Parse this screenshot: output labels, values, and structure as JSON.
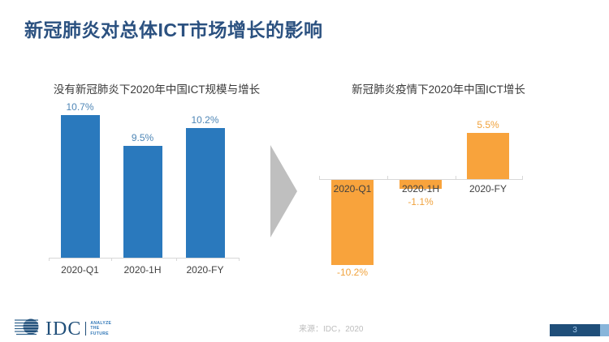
{
  "slide": {
    "title": "新冠肺炎对总体ICT市场增长的影响",
    "source": "来源：IDC，2020",
    "page_number": "3"
  },
  "logo": {
    "wordmark": "IDC",
    "tagline_lines": [
      "ANALYZE",
      "THE",
      "FUTURE"
    ]
  },
  "colors": {
    "title": "#2B5180",
    "blue_bar": "#2A79BD",
    "blue_value_label": "#4E86B6",
    "orange_bar": "#F8A33C",
    "orange_value_label": "#F0A23C",
    "category_label": "#3F3F3F",
    "axis": "#D8D8D8",
    "arrow": "#BFBFBF",
    "footer_dark_blue": "#1F4E79",
    "footer_light_blue": "#88B5DA"
  },
  "chart_data": [
    {
      "type": "bar",
      "title": "没有新冠肺炎下2020年中国ICT规模与增长",
      "categories": [
        "2020-Q1",
        "2020-1H",
        "2020-FY"
      ],
      "values": [
        10.7,
        9.5,
        10.2
      ],
      "labels": [
        "10.7%",
        "9.5%",
        "10.2%"
      ],
      "unit": "percent growth",
      "bar_color": "#2A79BD",
      "label_color": "#4E86B6",
      "grid": false,
      "legend": "none",
      "note": "baseline-only x axis, value labels above bars"
    },
    {
      "type": "bar",
      "title": "新冠肺炎疫情下2020年中国ICT增长",
      "categories": [
        "2020-Q1",
        "2020-1H",
        "2020-FY"
      ],
      "values": [
        -10.2,
        -1.1,
        5.5
      ],
      "labels": [
        "-10.2%",
        "-1.1%",
        "5.5%"
      ],
      "unit": "percent growth",
      "bar_color": "#F8A33C",
      "label_color": "#F0A23C",
      "grid": false,
      "legend": "none",
      "note": "zero baseline axis, negative bars hang below axis, category labels at axis"
    }
  ]
}
